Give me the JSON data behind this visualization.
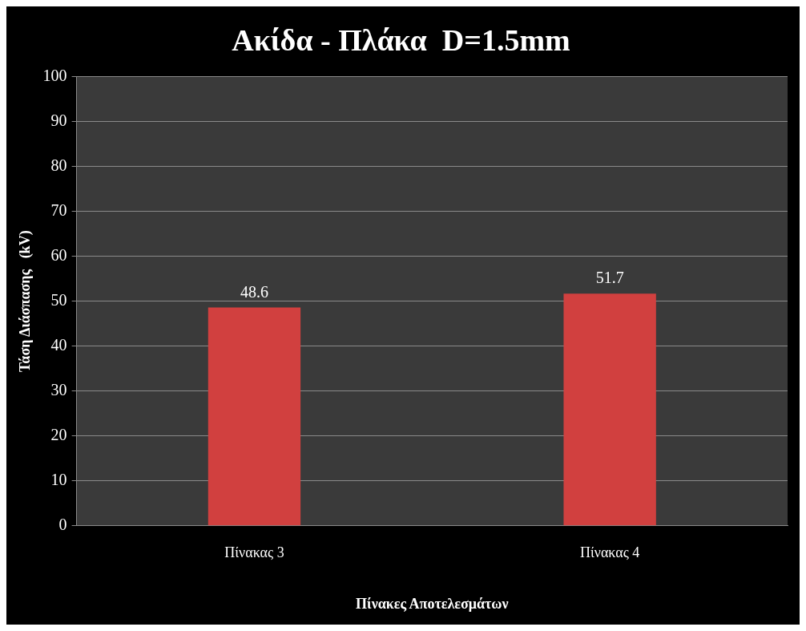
{
  "chart_data": {
    "type": "bar",
    "title": "Ακίδα - Πλάκα  D=1.5mm",
    "xlabel": "Πίνακες Αποτελεσμάτων",
    "ylabel": "Τάση Διάσπασης   (kV)",
    "categories": [
      "Πίνακας 3",
      "Πίνακας 4"
    ],
    "values": [
      48.6,
      51.7
    ],
    "color": "#d1403f",
    "ylim": [
      0,
      100
    ],
    "yticks": [
      0,
      10,
      20,
      30,
      40,
      50,
      60,
      70,
      80,
      90,
      100
    ],
    "grid": "y",
    "data_labels": true,
    "legend": false
  }
}
